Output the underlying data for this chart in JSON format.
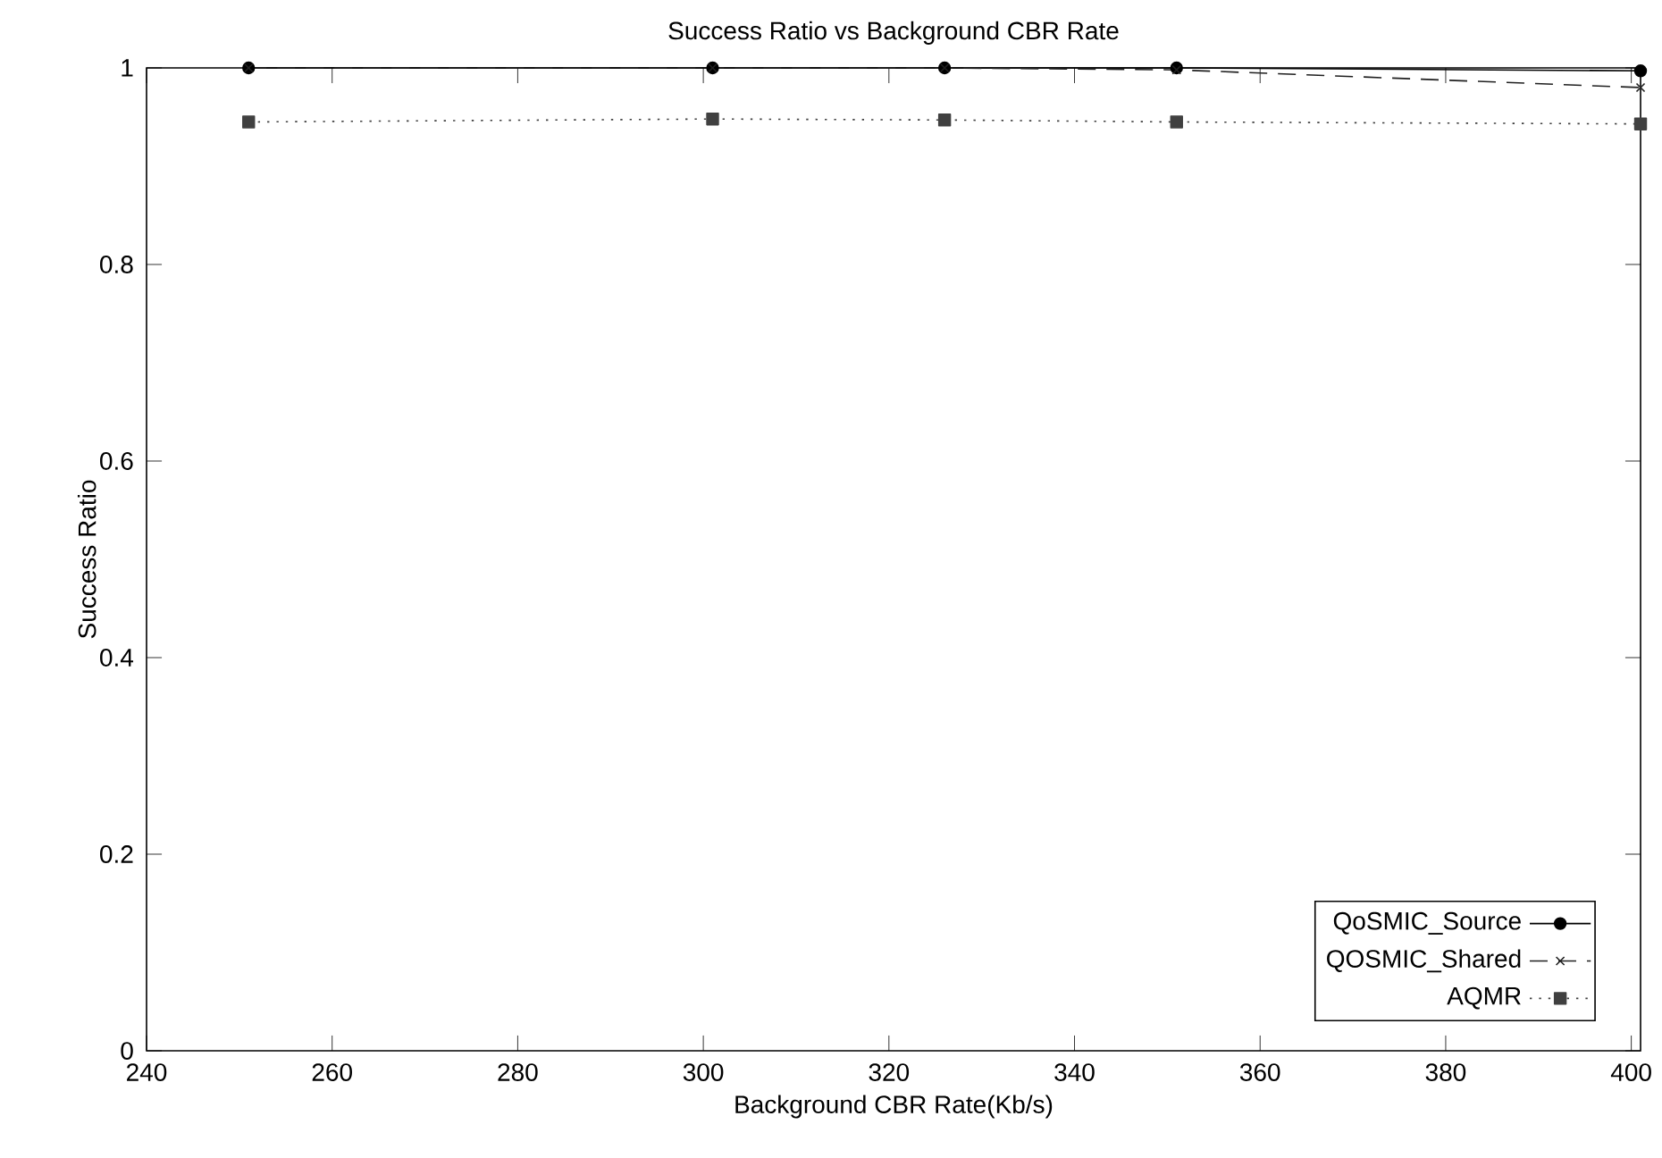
{
  "chart_data": {
    "type": "line",
    "title": "Success Ratio vs  Background CBR Rate",
    "xlabel": "Background CBR Rate(Kb/s)",
    "ylabel": "Success Ratio",
    "xlim": [
      240,
      401
    ],
    "xticks": [
      240,
      260,
      280,
      300,
      320,
      340,
      360,
      380,
      400
    ],
    "ylim": [
      0,
      1
    ],
    "yticks": [
      0,
      0.2,
      0.4,
      0.6,
      0.8,
      1
    ],
    "x": [
      251,
      301,
      326,
      351,
      401
    ],
    "legend": "bottom right",
    "grid": false,
    "series": [
      {
        "name": "QoSMIC_Source",
        "color": "#000000",
        "values": [
          1.0,
          1.0,
          1.0,
          1.0,
          0.997
        ],
        "marker": "circle",
        "line_style": "solid"
      },
      {
        "name": "QOSMIC_Shared",
        "color": "#202020",
        "values": [
          1.0,
          1.0,
          1.0,
          0.998,
          0.98
        ],
        "marker": "cross",
        "line_style": "dashed"
      },
      {
        "name": "AQMR",
        "color": "#404040",
        "values": [
          0.945,
          0.948,
          0.947,
          0.945,
          0.943
        ],
        "marker": "square",
        "line_style": "dotted"
      }
    ]
  }
}
